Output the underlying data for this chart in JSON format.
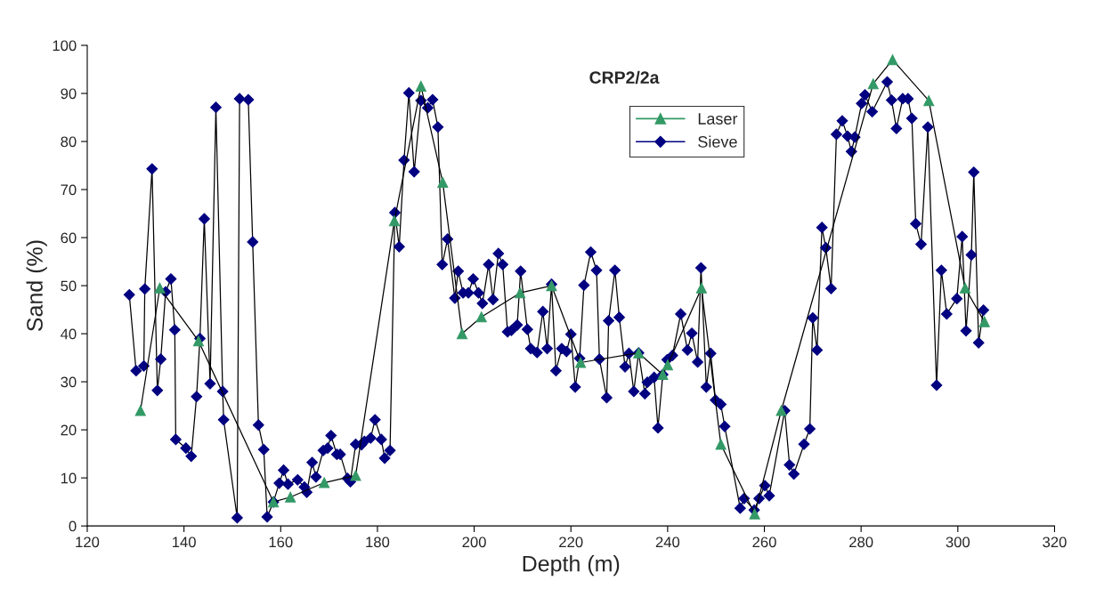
{
  "chart_data": {
    "type": "line",
    "title": "CRP2/2a",
    "xlabel": "Depth (m)",
    "ylabel": "Sand (%)",
    "xlim": [
      120,
      320
    ],
    "xticks": [
      120,
      140,
      160,
      180,
      200,
      220,
      240,
      260,
      280,
      300,
      320
    ],
    "ylim": [
      0,
      100
    ],
    "yticks": [
      0,
      10,
      20,
      30,
      40,
      50,
      60,
      70,
      80,
      90,
      100
    ],
    "grid": false,
    "legend": "top",
    "line_style": "solid",
    "series": [
      {
        "name": "Laser",
        "color": "#339966",
        "marker": "triangle",
        "x": [
          131,
          135,
          143,
          158.5,
          162,
          169,
          175.5,
          183.5,
          189,
          193.5,
          197.5,
          201.5,
          209.5,
          216,
          222,
          234,
          239,
          240,
          247,
          251,
          258,
          263.5,
          282.5,
          286.5,
          294,
          301.5,
          305.5
        ],
        "values": [
          24,
          49.5,
          38.5,
          5,
          6,
          9,
          10.5,
          63.5,
          91.5,
          71.5,
          40,
          43.5,
          48.5,
          50,
          34,
          36,
          31.5,
          33.5,
          49.5,
          17,
          2.5,
          24,
          92,
          97,
          88.5,
          49.5,
          42.5
        ]
      },
      {
        "name": "Sieve",
        "color": "#000080",
        "marker": "diamond",
        "x": [
          128.7,
          130.1,
          131.7,
          131.9,
          133.4,
          134.5,
          135.2,
          136.2,
          137.3,
          138.1,
          138.3,
          140.4,
          141.5,
          142.6,
          143.3,
          144.2,
          145.4,
          146.6,
          148.0,
          148.2,
          151.0,
          151.5,
          153.3,
          154.2,
          155.4,
          156.5,
          157.2,
          158.5,
          159.7,
          160.6,
          161.5,
          163.5,
          164.9,
          165.4,
          166.5,
          167.3,
          168.8,
          169.7,
          170.4,
          171.6,
          172.3,
          173.8,
          174.4,
          175.5,
          176.7,
          177.3,
          178.6,
          179.5,
          180.8,
          181.5,
          182.6,
          183.6,
          184.5,
          185.5,
          186.5,
          187.6,
          189.0,
          190.4,
          191.4,
          192.5,
          193.4,
          194.5,
          196.0,
          196.7,
          197.7,
          198.8,
          199.8,
          200.9,
          201.7,
          203.0,
          203.9,
          205.0,
          205.9,
          206.9,
          207.7,
          208.9,
          209.6,
          211.0,
          211.7,
          213.0,
          214.2,
          215.1,
          216.0,
          216.9,
          218.1,
          219.1,
          220.0,
          220.9,
          221.8,
          222.7,
          224.1,
          225.3,
          225.9,
          227.4,
          227.8,
          229.1,
          230.0,
          231.2,
          232.0,
          233.0,
          234.0,
          235.3,
          235.8,
          237.2,
          238.0,
          239.0,
          239.9,
          241.0,
          242.7,
          244.1,
          245.0,
          246.2,
          246.9,
          248.0,
          248.9,
          249.9,
          251.0,
          251.8,
          255.0,
          255.8,
          257.9,
          258.9,
          260.1,
          261.0,
          264.2,
          265.2,
          266.1,
          268.2,
          269.4,
          270.0,
          270.9,
          271.9,
          272.7,
          273.8,
          274.9,
          276.1,
          277.2,
          278.0,
          278.7,
          280.1,
          280.8,
          282.3,
          285.4,
          286.3,
          287.3,
          288.6,
          289.7,
          290.5,
          291.3,
          292.4,
          293.8,
          295.6,
          296.6,
          297.7,
          299.8,
          300.9,
          301.7,
          302.8,
          303.3,
          304.3,
          305.3
        ],
        "values": [
          48.1,
          32.3,
          33.3,
          49.3,
          74.3,
          28.2,
          34.7,
          48.7,
          51.4,
          40.8,
          18.0,
          16.2,
          14.5,
          26.9,
          39.0,
          63.9,
          29.6,
          87.1,
          28.0,
          22.1,
          1.7,
          88.9,
          88.7,
          59.1,
          21.0,
          15.9,
          1.9,
          5,
          8.9,
          11.6,
          8.7,
          9.6,
          8.1,
          7.0,
          13.2,
          10.2,
          15.7,
          16.2,
          18.8,
          14.9,
          14.9,
          9.9,
          9.2,
          17.0,
          16.9,
          17.6,
          18.3,
          22.1,
          18.0,
          14.1,
          15.7,
          65.2,
          58.1,
          76.1,
          90.1,
          73.7,
          88.5,
          87.0,
          88.7,
          83.0,
          54.4,
          59.7,
          47.4,
          53.0,
          48.5,
          48.5,
          51.4,
          48.5,
          46.3,
          54.4,
          47.1,
          56.7,
          54.4,
          40.4,
          40.7,
          41.8,
          53.0,
          40.9,
          36.9,
          36.1,
          44.6,
          36.9,
          50.3,
          32.3,
          36.9,
          36.3,
          39.9,
          28.9,
          34.9,
          50.1,
          57.0,
          53.2,
          34.7,
          26.7,
          42.7,
          53.2,
          43.4,
          33.1,
          35.9,
          28.0,
          36,
          27.5,
          29.9,
          30.9,
          20.4,
          31.5,
          34.6,
          35.5,
          44.1,
          36.6,
          40.1,
          34.1,
          53.7,
          28.9,
          35.9,
          26.2,
          25.3,
          20.7,
          3.7,
          5.7,
          3.3,
          5.7,
          8.4,
          6.3,
          24.0,
          12.7,
          10.8,
          17.0,
          20.2,
          43.3,
          36.6,
          62.1,
          57.9,
          49.4,
          81.5,
          84.3,
          81.1,
          77.9,
          80.9,
          87.9,
          89.7,
          86.2,
          92.4,
          88.6,
          82.7,
          88.9,
          88.9,
          84.8,
          62.9,
          58.6,
          83.0,
          29.3,
          53.2,
          44.1,
          47.3,
          60.2,
          40.6,
          56.4,
          73.6,
          38.1,
          44.9
        ]
      }
    ]
  }
}
